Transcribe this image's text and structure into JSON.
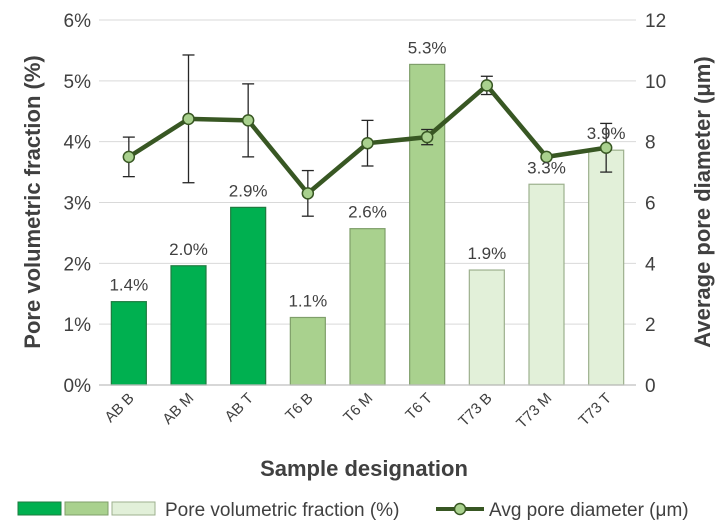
{
  "chart_data": {
    "type": "bar",
    "categories": [
      "AB B",
      "AB M",
      "AB T",
      "T6 B",
      "T6 M",
      "T6 T",
      "T73 B",
      "T73 M",
      "T73 T"
    ],
    "bar_series": {
      "name": "Pore volumetric fraction (%)",
      "values": [
        1.37,
        1.96,
        2.92,
        1.11,
        2.57,
        5.27,
        1.89,
        3.3,
        3.86
      ],
      "labels": [
        "1.4%",
        "2.0%",
        "2.9%",
        "1.1%",
        "2.6%",
        "5.3%",
        "1.9%",
        "3.3%",
        "3.9%"
      ],
      "group_colors": [
        "#00B050",
        "#00B050",
        "#00B050",
        "#A9D18E",
        "#A9D18E",
        "#A9D18E",
        "#E2F0D9",
        "#E2F0D9",
        "#E2F0D9"
      ],
      "stroke_colors": [
        "#1E7B3F",
        "#1E7B3F",
        "#1E7B3F",
        "#7F9F6A",
        "#7F9F6A",
        "#7F9F6A",
        "#9DB08E",
        "#9DB08E",
        "#9DB08E"
      ]
    },
    "line_series": {
      "name": "Avg pore diameter (μm)",
      "values": [
        7.5,
        8.75,
        8.7,
        6.3,
        7.95,
        8.15,
        9.85,
        7.5,
        7.8
      ],
      "error": [
        0.65,
        2.1,
        1.2,
        0.75,
        0.75,
        0.25,
        0.3,
        0.05,
        0.8
      ],
      "line_color": "#385723",
      "marker_fill": "#A9D18E"
    },
    "xlabel": "Sample designation",
    "ylabel": "Pore volumetric fraction (%)",
    "y2label": "Average pore diameter (μm)",
    "ylim": [
      0,
      6
    ],
    "y2lim": [
      0,
      12
    ],
    "yticks": [
      0,
      1,
      2,
      3,
      4,
      5,
      6
    ],
    "ytick_labels": [
      "0%",
      "1%",
      "2%",
      "3%",
      "4%",
      "5%",
      "6%"
    ],
    "y2ticks": [
      0,
      2,
      4,
      6,
      8,
      10,
      12
    ],
    "y2tick_labels": [
      "0",
      "2",
      "4",
      "6",
      "8",
      "10",
      "12"
    ],
    "grid": true,
    "legend_position": "bottom",
    "legend_bar_colors": [
      "#00B050",
      "#A9D18E",
      "#E2F0D9"
    ]
  }
}
